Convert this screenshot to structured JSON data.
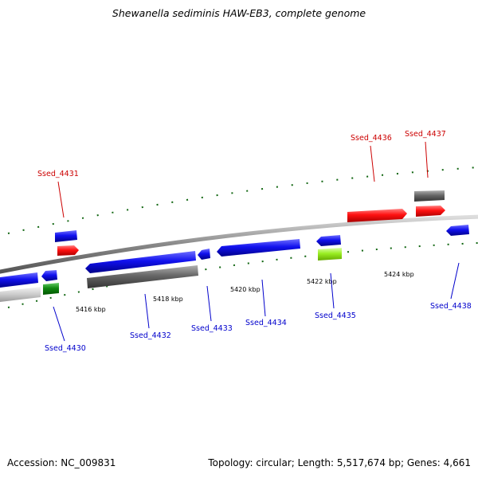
{
  "header": {
    "title": "Shewanella sediminis HAW-EB3, complete genome"
  },
  "footer": {
    "accession": "Accession: NC_009831",
    "topology": "Topology: circular; Length: 5,517,674 bp; Genes: 4,661"
  },
  "ticks": [
    "5416 kbp",
    "5418 kbp",
    "5420 kbp",
    "5422 kbp",
    "5424 kbp"
  ],
  "gene_labels": [
    {
      "name": "Ssed_4430",
      "color": "#0000cc"
    },
    {
      "name": "Ssed_4431",
      "color": "#cc0000"
    },
    {
      "name": "Ssed_4432",
      "color": "#0000cc"
    },
    {
      "name": "Ssed_4433",
      "color": "#0000cc"
    },
    {
      "name": "Ssed_4434",
      "color": "#0000cc"
    },
    {
      "name": "Ssed_4435",
      "color": "#0000cc"
    },
    {
      "name": "Ssed_4436",
      "color": "#cc0000"
    },
    {
      "name": "Ssed_4437",
      "color": "#cc0000"
    },
    {
      "name": "Ssed_4438",
      "color": "#0000cc"
    }
  ],
  "colors": {
    "forward_cds": "#ff1111",
    "reverse_cds": "#1111ee",
    "rna_gene": "#666666",
    "backbone": "#8a8a8a",
    "gc_dots": "#116611",
    "light_green": "#99ee22",
    "dark_green": "#118811",
    "light_gray": "#cccccc"
  }
}
